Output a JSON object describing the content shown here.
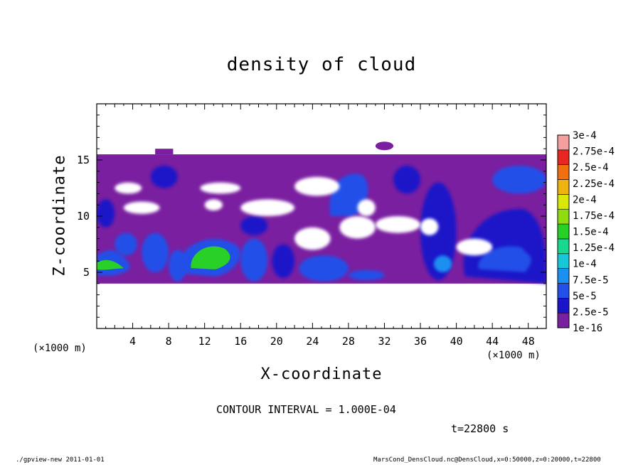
{
  "figure": {
    "title": "density of cloud",
    "xlabel": "X-coordinate",
    "ylabel": "Z-coordinate",
    "x_unit_left": "(×1000 m)",
    "x_unit_right": "(×1000 m)",
    "contour_interval": "CONTOUR INTERVAL = 1.000E-04",
    "time_label": "t=22800 s",
    "footer_left": "./gpview-new   2011-01-01",
    "footer_right": "MarsCond_DensCloud.nc@DensCloud,x=0:50000,z=0:20000,t=22800"
  },
  "chart_data": {
    "type": "heatmap",
    "title": "density of cloud",
    "xlabel": "X-coordinate",
    "ylabel": "Z-coordinate",
    "x_unit": "×1000 m",
    "xlim": [
      0,
      50
    ],
    "ylim": [
      0,
      20
    ],
    "x_ticks": [
      4,
      8,
      12,
      16,
      20,
      24,
      28,
      32,
      36,
      40,
      44,
      48
    ],
    "y_ticks": [
      5,
      10,
      15
    ],
    "colorbar": {
      "levels": [
        "1e-16",
        "2.5e-5",
        "5e-5",
        "7.5e-5",
        "1e-4",
        "1.25e-4",
        "1.5e-4",
        "1.75e-4",
        "2e-4",
        "2.25e-4",
        "2.5e-4",
        "2.75e-4",
        "3e-4"
      ],
      "colors": [
        "#7a1fa0",
        "#1c14c8",
        "#2350e8",
        "#1a90f0",
        "#16c8d8",
        "#18d890",
        "#28d028",
        "#90dc10",
        "#d8e808",
        "#f0b410",
        "#f07010",
        "#e82820",
        "#f4a0a0"
      ]
    },
    "regions": [
      {
        "id": "main-cloud-layer",
        "level": "1e-16",
        "x": [
          0,
          50
        ],
        "z": [
          4,
          15.5
        ]
      },
      {
        "id": "upper-bump",
        "level": "1e-16",
        "x": [
          31,
          33
        ],
        "z": [
          16,
          16.5
        ]
      },
      {
        "id": "blob-left",
        "level": "5e-5",
        "x": [
          0,
          3
        ],
        "z": [
          4.5,
          7
        ]
      },
      {
        "id": "blob-center-left",
        "level": "1.5e-4",
        "x": [
          10,
          15
        ],
        "z": [
          5,
          8
        ]
      },
      {
        "id": "blob-upper-mid",
        "level": "5e-5",
        "x": [
          26,
          30
        ],
        "z": [
          10,
          14
        ]
      },
      {
        "id": "blob-right",
        "level": "5e-5",
        "x": [
          41,
          50
        ],
        "z": [
          4,
          11
        ]
      }
    ]
  }
}
